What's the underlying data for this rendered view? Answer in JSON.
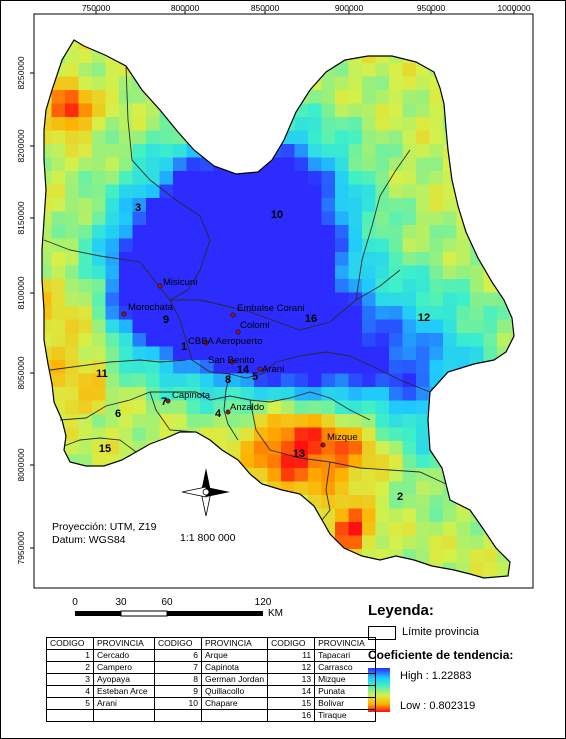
{
  "x_ticks": [
    "750000",
    "800000",
    "850000",
    "900000",
    "950000",
    "1000000"
  ],
  "y_ticks": [
    "8250000",
    "8200000",
    "8150000",
    "8100000",
    "8050000",
    "8000000",
    "7950000"
  ],
  "region_numbers": [
    "1",
    "2",
    "3",
    "4",
    "5",
    "6",
    "7",
    "8",
    "9",
    "10",
    "11",
    "12",
    "13",
    "14",
    "15",
    "16"
  ],
  "places": [
    "Misicuni",
    "Morochata",
    "Embalse Corani",
    "Colomi",
    "CBBA Aeropuerto",
    "San Benito",
    "Arani",
    "Capinota",
    "Anzaldo",
    "Mizque"
  ],
  "scale_bar": {
    "labels": [
      "0",
      "30",
      "60",
      "120"
    ],
    "unit": "KM",
    "ratio": "1:1 800 000"
  },
  "projection": {
    "line1": "Proyección: UTM, Z19",
    "line2": "Datum: WGS84"
  },
  "legend": {
    "title": "Leyenda:",
    "limit_label": "Límite provincia",
    "coef_title": "Coeficiente de tendencia:",
    "high": "High : 1.22883",
    "low": "Low : 0.802319"
  },
  "table": {
    "headers": [
      "CODIGO",
      "PROVINCIA",
      "CODIGO",
      "PROVINCIA",
      "CODIGO",
      "PROVINCIA"
    ],
    "rows": [
      [
        "1",
        "Cercado",
        "6",
        "Arque",
        "11",
        "Tapacari"
      ],
      [
        "2",
        "Campero",
        "7",
        "Capinota",
        "12",
        "Carrasco"
      ],
      [
        "3",
        "Ayopaya",
        "8",
        "German Jordan",
        "13",
        "Mizque"
      ],
      [
        "4",
        "Esteban Arce",
        "9",
        "Quillacollo",
        "14",
        "Punata"
      ],
      [
        "5",
        "Arani",
        "10",
        "Chapare",
        "15",
        "Bolivar"
      ],
      [
        "",
        "",
        "",
        "",
        "16",
        "Tiraque"
      ]
    ]
  },
  "colors": {
    "high": "#2c2cff",
    "low": "#ff1010",
    "mid": "#d8f048"
  }
}
